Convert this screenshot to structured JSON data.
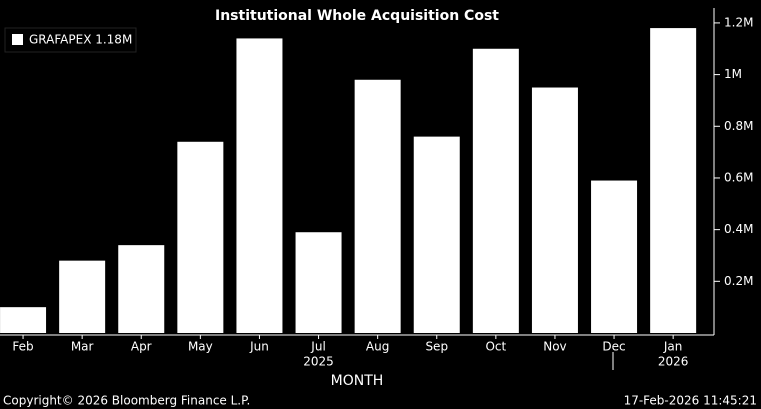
{
  "chart_data": {
    "type": "bar",
    "title": "Institutional Whole Acquisition Cost",
    "xlabel": "MONTH",
    "categories": [
      "Feb",
      "Mar",
      "Apr",
      "May",
      "Jun",
      "Jul",
      "Aug",
      "Sep",
      "Oct",
      "Nov",
      "Dec",
      "Jan"
    ],
    "year_labels": [
      null,
      null,
      null,
      null,
      null,
      "2025",
      null,
      null,
      null,
      null,
      null,
      "2026"
    ],
    "series": [
      {
        "name": "GRAFAPEX 1.18M",
        "color": "#ffffff",
        "values": [
          0.1,
          0.28,
          0.34,
          0.74,
          1.14,
          0.39,
          0.98,
          0.76,
          1.1,
          0.95,
          0.59,
          1.18
        ]
      }
    ],
    "ylim": [
      0,
      1.25
    ],
    "yticks": [
      {
        "value": 0.2,
        "label": "0.2M"
      },
      {
        "value": 0.4,
        "label": "0.4M"
      },
      {
        "value": 0.6,
        "label": "0.6M"
      },
      {
        "value": 0.8,
        "label": "0.8M"
      },
      {
        "value": 1,
        "label": "1M"
      },
      {
        "value": 1.2,
        "label": "1.2M"
      }
    ],
    "y_axis_side": "right",
    "legend": "top-left",
    "footer": {
      "copyright": "Copyright© 2026 Bloomberg Finance L.P.",
      "timestamp": "17-Feb-2026 11:45:21"
    }
  }
}
